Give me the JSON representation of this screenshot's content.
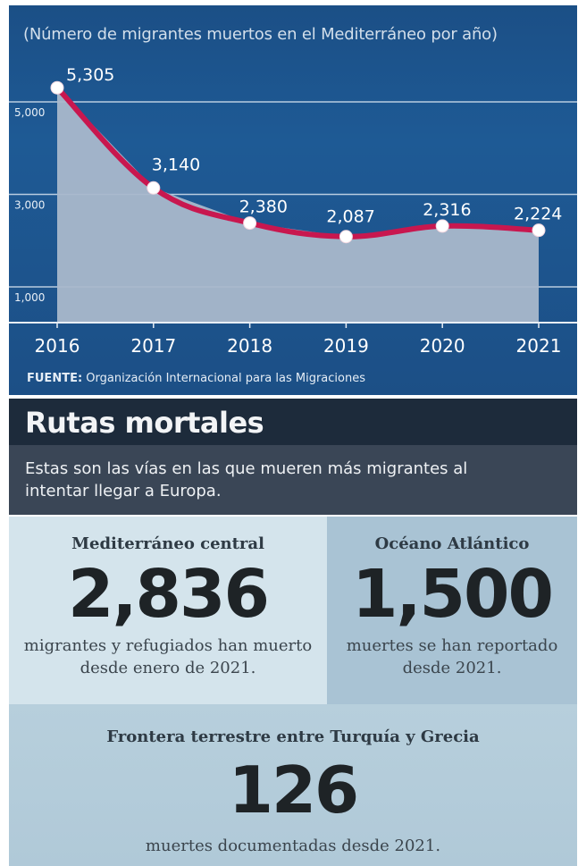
{
  "chart": {
    "subtitle": "(Número de migrantes muertos en el Mediterráneo por año)",
    "source_label": "FUENTE:",
    "source_text": "Organización Internacional para las Migraciones"
  },
  "chart_data": {
    "type": "area",
    "title": "",
    "subtitle": "(Número de migrantes muertos en el Mediterráneo por año)",
    "xlabel": "",
    "ylabel": "",
    "x": [
      "2016",
      "2017",
      "2018",
      "2019",
      "2020",
      "2021"
    ],
    "values": [
      5305,
      3140,
      2380,
      2087,
      2316,
      2224
    ],
    "data_labels": [
      "5,305",
      "3,140",
      "2,380",
      "2,087",
      "2,316",
      "2,224"
    ],
    "yticks": [
      1000,
      3000,
      5000
    ],
    "ytick_labels": [
      "1,000",
      "3,000",
      "5,000"
    ],
    "ylim": [
      0,
      5800
    ],
    "grid": true,
    "line_color": "#c8174f",
    "fill_color": "#a9b8cb",
    "background_color": "#1c5290"
  },
  "routes": {
    "title": "Rutas mortales",
    "description": "Estas son las vías en las que mueren más migrantes al intentar llegar a Europa.",
    "mediterraneo": {
      "name": "Mediterráneo central",
      "value": "2,836",
      "description": "migrantes y refugiados han muerto desde enero de 2021."
    },
    "atlantico": {
      "name": "Océano Atlántico",
      "value": "1,500",
      "description": "muertes se han reportado desde 2021."
    },
    "turquia": {
      "name": "Frontera terrestre entre Turquía y Grecia",
      "value": "126",
      "description": "muertes documentadas desde 2021."
    }
  }
}
